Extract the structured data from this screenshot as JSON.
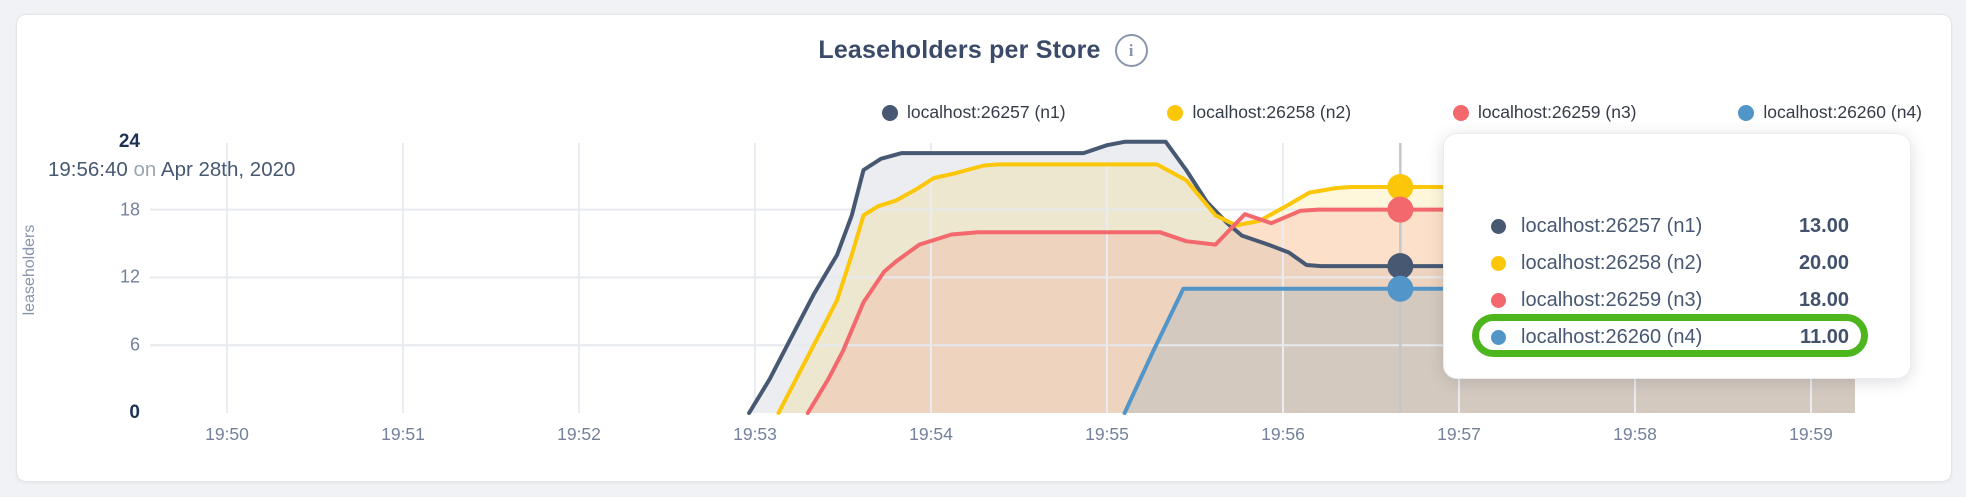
{
  "header": {
    "title": "Leaseholders per Store",
    "info_icon_glyph": "i"
  },
  "axes": {
    "y_label": "leaseholders"
  },
  "legend": {
    "items": [
      {
        "label": "localhost:26257 (n1)",
        "color": "#475872"
      },
      {
        "label": "localhost:26258 (n2)",
        "color": "#fcc609"
      },
      {
        "label": "localhost:26259 (n3)",
        "color": "#f2686c"
      },
      {
        "label": "localhost:26260 (n4)",
        "color": "#5295c8"
      }
    ]
  },
  "tooltip": {
    "time": "19:56:40",
    "on_word": "on",
    "date": "Apr 28th, 2020",
    "rows": [
      {
        "label": "localhost:26257 (n1)",
        "value": "13.00",
        "color": "#475872",
        "highlighted": false
      },
      {
        "label": "localhost:26258 (n2)",
        "value": "20.00",
        "color": "#fcc609",
        "highlighted": false
      },
      {
        "label": "localhost:26259 (n3)",
        "value": "18.00",
        "color": "#f2686c",
        "highlighted": false
      },
      {
        "label": "localhost:26260 (n4)",
        "value": "11.00",
        "color": "#5295c8",
        "highlighted": true
      }
    ],
    "highlight_color": "#4db61d"
  },
  "chart_data": {
    "type": "area",
    "title": "Leaseholders per Store",
    "ylabel": "leaseholders",
    "xlabel": "",
    "grid": true,
    "legend_position": "top",
    "ylim": [
      0,
      24
    ],
    "y_ticks": [
      0,
      6,
      12,
      18,
      24
    ],
    "y_gridline_ticks": [
      6,
      12,
      18
    ],
    "x_ticks": [
      "19:50",
      "19:51",
      "19:52",
      "19:53",
      "19:54",
      "19:55",
      "19:56",
      "19:57",
      "19:58",
      "19:59"
    ],
    "x_tick_interval_seconds": 60,
    "x_range_seconds": [
      0,
      555
    ],
    "hover": {
      "time": "19:56:40",
      "seconds_from_19_50": 400,
      "values": [
        13,
        20,
        18,
        11
      ]
    },
    "series": [
      {
        "name": "localhost:26257 (n1)",
        "color": "#475872",
        "fill_opacity": 0.11,
        "points": [
          [
            178,
            0
          ],
          [
            185,
            3
          ],
          [
            192,
            6.5
          ],
          [
            200,
            10.5
          ],
          [
            208,
            14
          ],
          [
            213,
            17.5
          ],
          [
            217,
            21.5
          ],
          [
            223,
            22.5
          ],
          [
            230,
            23
          ],
          [
            292,
            23
          ],
          [
            300,
            23.7
          ],
          [
            306,
            24
          ],
          [
            320,
            24
          ],
          [
            327,
            21.5
          ],
          [
            334,
            18.7
          ],
          [
            341,
            16.8
          ],
          [
            346,
            15.7
          ],
          [
            355,
            14.9
          ],
          [
            362,
            14.2
          ],
          [
            368,
            13.1
          ],
          [
            373,
            13
          ],
          [
            555,
            13
          ]
        ]
      },
      {
        "name": "localhost:26258 (n2)",
        "color": "#fcc609",
        "fill_opacity": 0.14,
        "points": [
          [
            188,
            0
          ],
          [
            196,
            4
          ],
          [
            203,
            7.5
          ],
          [
            208,
            10
          ],
          [
            213,
            14
          ],
          [
            217,
            17.5
          ],
          [
            222,
            18.3
          ],
          [
            228,
            18.8
          ],
          [
            235,
            19.8
          ],
          [
            241,
            20.8
          ],
          [
            248,
            21.2
          ],
          [
            258,
            21.9
          ],
          [
            263,
            22
          ],
          [
            317,
            22
          ],
          [
            327,
            20.6
          ],
          [
            337,
            17.5
          ],
          [
            344,
            16.6
          ],
          [
            352,
            17
          ],
          [
            361,
            18.3
          ],
          [
            369,
            19.5
          ],
          [
            378,
            19.9
          ],
          [
            383,
            20
          ],
          [
            555,
            20
          ]
        ]
      },
      {
        "name": "localhost:26259 (n3)",
        "color": "#f2686c",
        "fill_opacity": 0.16,
        "points": [
          [
            198,
            0
          ],
          [
            205,
            3
          ],
          [
            210,
            5.5
          ],
          [
            217,
            9.8
          ],
          [
            224,
            12.5
          ],
          [
            228,
            13.4
          ],
          [
            236,
            14.9
          ],
          [
            247,
            15.8
          ],
          [
            256,
            16
          ],
          [
            318,
            16
          ],
          [
            327,
            15.2
          ],
          [
            337,
            14.9
          ],
          [
            347,
            17.6
          ],
          [
            356,
            16.8
          ],
          [
            366,
            17.9
          ],
          [
            372,
            18
          ],
          [
            555,
            18
          ]
        ]
      },
      {
        "name": "localhost:26260 (n4)",
        "color": "#5295c8",
        "fill_opacity": 0.16,
        "points": [
          [
            306,
            0
          ],
          [
            316,
            5.6
          ],
          [
            326,
            11
          ],
          [
            555,
            11
          ]
        ]
      }
    ]
  }
}
